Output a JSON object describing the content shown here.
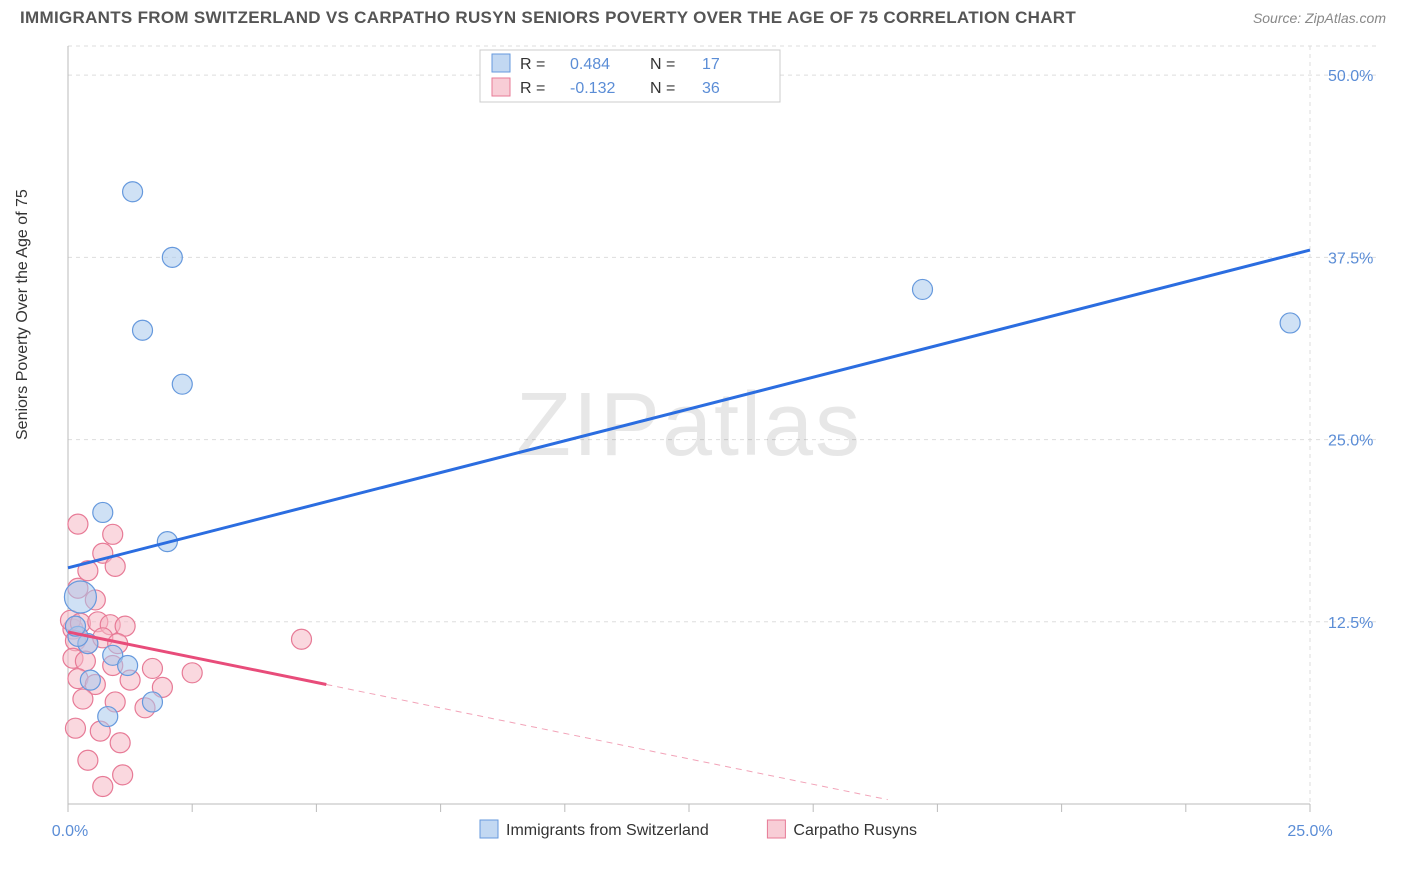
{
  "title": "IMMIGRANTS FROM SWITZERLAND VS CARPATHO RUSYN SENIORS POVERTY OVER THE AGE OF 75 CORRELATION CHART",
  "source": "Source: ZipAtlas.com",
  "y_axis_label": "Seniors Poverty Over the Age of 75",
  "watermark": "ZIPatlas",
  "chart": {
    "type": "scatter",
    "xlim": [
      0,
      25
    ],
    "ylim": [
      0,
      52
    ],
    "x_ticks": [
      0,
      25
    ],
    "x_tick_labels": [
      "0.0%",
      "25.0%"
    ],
    "x_minor_ticks": [
      2.5,
      5,
      7.5,
      10,
      12.5,
      15,
      17.5,
      20,
      22.5
    ],
    "y_ticks": [
      12.5,
      25,
      37.5,
      50
    ],
    "y_tick_labels": [
      "12.5%",
      "25.0%",
      "37.5%",
      "50.0%"
    ],
    "grid_y": [
      12.5,
      25,
      37.5,
      50,
      52
    ],
    "background_color": "#ffffff",
    "grid_color": "#dddddd",
    "axis_color": "#bbbbbb"
  },
  "series": [
    {
      "name": "Immigrants from Switzerland",
      "color_fill": "#a8c8ec",
      "color_stroke": "#6699dd",
      "fill_opacity": 0.55,
      "marker": "circle",
      "marker_radius": 10,
      "stats": {
        "R": "0.484",
        "N": "17"
      },
      "trend": {
        "x1": 0,
        "y1": 16.2,
        "x2": 25,
        "y2": 38.0,
        "color": "#2b6de0",
        "width": 3,
        "dash": null
      },
      "points": [
        {
          "x": 1.3,
          "y": 42.0
        },
        {
          "x": 2.1,
          "y": 37.5
        },
        {
          "x": 1.5,
          "y": 32.5
        },
        {
          "x": 2.3,
          "y": 28.8
        },
        {
          "x": 17.2,
          "y": 35.3
        },
        {
          "x": 24.6,
          "y": 33.0
        },
        {
          "x": 0.7,
          "y": 20.0
        },
        {
          "x": 2.0,
          "y": 18.0
        },
        {
          "x": 0.25,
          "y": 14.2,
          "r": 16
        },
        {
          "x": 0.4,
          "y": 11.0
        },
        {
          "x": 0.9,
          "y": 10.2
        },
        {
          "x": 1.2,
          "y": 9.5
        },
        {
          "x": 0.45,
          "y": 8.5
        },
        {
          "x": 1.7,
          "y": 7.0
        },
        {
          "x": 0.8,
          "y": 6.0
        },
        {
          "x": 0.2,
          "y": 11.5
        },
        {
          "x": 0.15,
          "y": 12.2
        }
      ]
    },
    {
      "name": "Carpatho Rusyns",
      "color_fill": "#f5b8c5",
      "color_stroke": "#e77a96",
      "fill_opacity": 0.55,
      "marker": "circle",
      "marker_radius": 10,
      "stats": {
        "R": "-0.132",
        "N": "36"
      },
      "trend": {
        "x1": 0,
        "y1": 11.8,
        "x2": 5.2,
        "y2": 8.2,
        "color": "#e84c7a",
        "width": 3,
        "dash": null
      },
      "trend_ext": {
        "x1": 5.2,
        "y1": 8.2,
        "x2": 16.5,
        "y2": 0.3,
        "color": "#f2a3b8",
        "width": 1,
        "dash": "6 5"
      },
      "points": [
        {
          "x": 0.2,
          "y": 19.2
        },
        {
          "x": 0.9,
          "y": 18.5
        },
        {
          "x": 0.7,
          "y": 17.2
        },
        {
          "x": 0.4,
          "y": 16.0
        },
        {
          "x": 0.95,
          "y": 16.3
        },
        {
          "x": 0.2,
          "y": 14.8
        },
        {
          "x": 0.55,
          "y": 14.0
        },
        {
          "x": 0.1,
          "y": 12.0
        },
        {
          "x": 0.05,
          "y": 12.6
        },
        {
          "x": 0.25,
          "y": 12.4
        },
        {
          "x": 0.6,
          "y": 12.5
        },
        {
          "x": 0.85,
          "y": 12.3
        },
        {
          "x": 1.15,
          "y": 12.2
        },
        {
          "x": 0.15,
          "y": 11.2
        },
        {
          "x": 0.4,
          "y": 11.0
        },
        {
          "x": 0.7,
          "y": 11.4
        },
        {
          "x": 1.0,
          "y": 11.0
        },
        {
          "x": 4.7,
          "y": 11.3
        },
        {
          "x": 0.1,
          "y": 10.0
        },
        {
          "x": 0.35,
          "y": 9.8
        },
        {
          "x": 0.9,
          "y": 9.5
        },
        {
          "x": 1.7,
          "y": 9.3
        },
        {
          "x": 2.5,
          "y": 9.0
        },
        {
          "x": 0.2,
          "y": 8.6
        },
        {
          "x": 0.55,
          "y": 8.2
        },
        {
          "x": 1.25,
          "y": 8.5
        },
        {
          "x": 1.9,
          "y": 8.0
        },
        {
          "x": 0.3,
          "y": 7.2
        },
        {
          "x": 0.95,
          "y": 7.0
        },
        {
          "x": 1.55,
          "y": 6.6
        },
        {
          "x": 0.15,
          "y": 5.2
        },
        {
          "x": 0.65,
          "y": 5.0
        },
        {
          "x": 1.05,
          "y": 4.2
        },
        {
          "x": 0.4,
          "y": 3.0
        },
        {
          "x": 0.7,
          "y": 1.2
        },
        {
          "x": 1.1,
          "y": 2.0
        }
      ]
    }
  ],
  "top_legend": {
    "r_label": "R  =",
    "n_label": "N  ="
  },
  "bottom_legend": {
    "items": [
      {
        "label": "Immigrants from Switzerland",
        "fill": "#a8c8ec",
        "stroke": "#6699dd"
      },
      {
        "label": "Carpatho Rusyns",
        "fill": "#f5b8c5",
        "stroke": "#e77a96"
      }
    ]
  }
}
